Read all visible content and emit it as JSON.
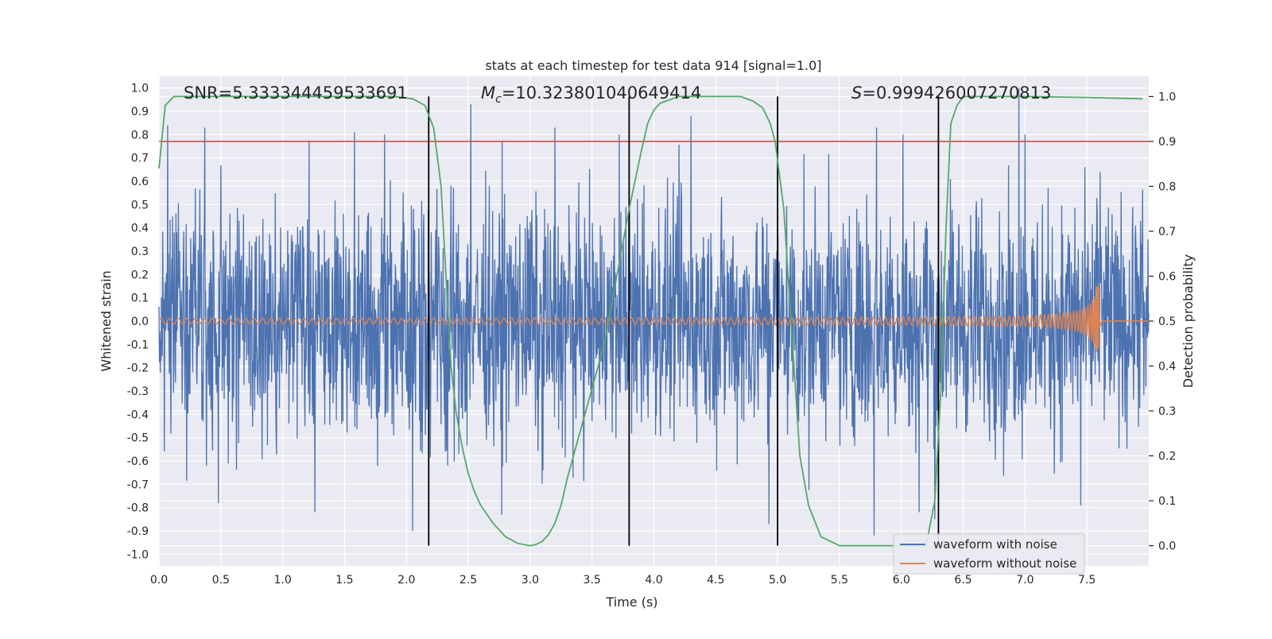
{
  "chart_data": {
    "type": "line",
    "title": "stats at each timestep for test data 914 [signal=1.0]",
    "xlabel": "Time (s)",
    "ylabel": "Whitened strain",
    "y2label": "Detection probability",
    "xlim": [
      0.0,
      8.0
    ],
    "ylim": [
      -1.05,
      1.05
    ],
    "y2lim": [
      -0.045,
      1.045
    ],
    "xticks": [
      0.0,
      0.5,
      1.0,
      1.5,
      2.0,
      2.5,
      3.0,
      3.5,
      4.0,
      4.5,
      5.0,
      5.5,
      6.0,
      6.5,
      7.0,
      7.5
    ],
    "yticks": [
      -1.0,
      -0.9,
      -0.8,
      -0.7,
      -0.6,
      -0.5,
      -0.4,
      -0.3,
      -0.2,
      -0.1,
      0.0,
      0.1,
      0.2,
      0.3,
      0.4,
      0.5,
      0.6,
      0.7,
      0.8,
      0.9,
      1.0
    ],
    "y2ticks": [
      0.0,
      0.1,
      0.2,
      0.3,
      0.4,
      0.5,
      0.6,
      0.7,
      0.8,
      0.9,
      1.0
    ],
    "grid": true,
    "legend_position": "lower-right",
    "annotations": {
      "snr": "SNR=5.333344459533691",
      "mc_symbol": "M",
      "mc_sub": "c",
      "mc_value": "=10.323801040649414",
      "s_symbol": "S",
      "s_value": "=0.999426007270813"
    },
    "threshold": {
      "value": 0.9,
      "axis": "right",
      "color": "#c44e52"
    },
    "vlines": [
      2.18,
      3.8,
      5.0,
      6.3
    ],
    "series": [
      {
        "name": "waveform with noise",
        "color": "#4c72b0",
        "axis": "left",
        "kind": "noise",
        "x_range": [
          0.0,
          8.0
        ],
        "envelope_typical": [
          -0.45,
          0.45
        ],
        "max": 1.0,
        "min": -0.92,
        "peaks": [
          [
            0.07,
            0.84
          ],
          [
            0.37,
            0.83
          ],
          [
            1.58,
            0.81
          ],
          [
            2.52,
            0.93
          ],
          [
            3.2,
            0.83
          ],
          [
            4.3,
            0.88
          ],
          [
            5.8,
            0.83
          ],
          [
            6.95,
            1.0
          ],
          [
            7.0,
            0.8
          ],
          [
            2.05,
            -0.9
          ],
          [
            2.77,
            -0.83
          ],
          [
            4.93,
            -0.87
          ],
          [
            5.78,
            -0.92
          ],
          [
            6.27,
            -0.85
          ],
          [
            0.48,
            -0.78
          ],
          [
            7.45,
            -0.79
          ]
        ]
      },
      {
        "name": "waveform without noise",
        "color": "#dd8452",
        "axis": "left",
        "kind": "chirp",
        "x_range": [
          0.0,
          7.6
        ],
        "amplitude_start": 0.012,
        "amplitude_peak": 0.17,
        "merger_time": 7.6
      },
      {
        "name": "detection probability",
        "color": "#55a868",
        "axis": "right",
        "kind": "line",
        "x": [
          0.0,
          0.05,
          0.12,
          0.2,
          1.9,
          2.05,
          2.15,
          2.22,
          2.28,
          2.32,
          2.36,
          2.4,
          2.45,
          2.5,
          2.55,
          2.6,
          2.7,
          2.8,
          2.9,
          3.0,
          3.05,
          3.1,
          3.15,
          3.2,
          3.25,
          3.3,
          3.4,
          3.5,
          3.6,
          3.7,
          3.8,
          3.9,
          3.95,
          4.0,
          4.05,
          4.1,
          4.2,
          4.3,
          4.7,
          4.8,
          4.88,
          4.94,
          4.98,
          5.05,
          5.12,
          5.18,
          5.25,
          5.35,
          5.5,
          6.2,
          6.27,
          6.32,
          6.36,
          6.4,
          6.45,
          6.5,
          6.6,
          7.0,
          7.5,
          7.95
        ],
        "y": [
          0.84,
          0.98,
          1.0,
          1.0,
          1.0,
          0.995,
          0.98,
          0.93,
          0.8,
          0.6,
          0.4,
          0.3,
          0.22,
          0.16,
          0.12,
          0.09,
          0.05,
          0.02,
          0.005,
          0.0,
          0.003,
          0.01,
          0.025,
          0.05,
          0.09,
          0.15,
          0.25,
          0.35,
          0.45,
          0.6,
          0.75,
          0.88,
          0.94,
          0.97,
          0.985,
          0.99,
          1.0,
          1.0,
          1.0,
          0.99,
          0.975,
          0.94,
          0.9,
          0.75,
          0.45,
          0.2,
          0.09,
          0.02,
          0.0,
          0.0,
          0.1,
          0.35,
          0.7,
          0.94,
          0.98,
          1.0,
          1.0,
          1.0,
          0.998,
          0.995
        ]
      }
    ]
  }
}
